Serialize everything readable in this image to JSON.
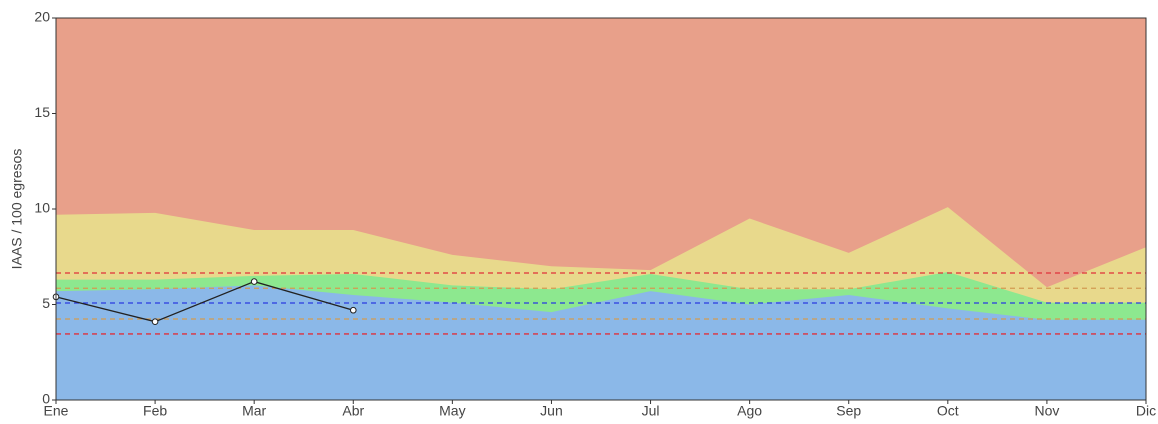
{
  "chart_data": {
    "type": "area",
    "ylabel": "IAAS / 100 egresos",
    "categories": [
      "Ene",
      "Feb",
      "Mar",
      "Abr",
      "May",
      "Jun",
      "Jul",
      "Ago",
      "Sep",
      "Oct",
      "Nov",
      "Dic"
    ],
    "ylim": [
      0,
      20
    ],
    "yticks": [
      0,
      5,
      10,
      15,
      20
    ],
    "series": [
      {
        "color": "#e8a08a",
        "values": [
          20,
          20,
          20,
          20,
          20,
          20,
          20,
          20,
          20,
          20,
          20,
          20
        ]
      },
      {
        "color": "#e8d98c",
        "values": [
          9.7,
          9.8,
          8.9,
          8.9,
          7.6,
          7.0,
          6.8,
          9.5,
          7.7,
          10.1,
          5.9,
          8.0
        ]
      },
      {
        "color": "#8de88f",
        "values": [
          6.3,
          6.3,
          6.5,
          6.6,
          6.0,
          5.8,
          6.6,
          5.8,
          5.8,
          6.7,
          5.1,
          5.1
        ]
      },
      {
        "color": "#8bb8e8",
        "values": [
          5.7,
          5.8,
          6.0,
          5.5,
          5.1,
          4.6,
          5.7,
          5.0,
          5.5,
          4.8,
          4.2,
          4.2
        ]
      }
    ],
    "line": {
      "color": "#222222",
      "values": [
        5.4,
        4.1,
        6.2,
        4.7,
        null,
        null,
        null,
        null,
        null,
        null,
        null,
        null
      ]
    },
    "hlines": [
      {
        "value": 6.65,
        "color": "#e0303a"
      },
      {
        "value": 5.85,
        "color": "#d49a50"
      },
      {
        "value": 5.08,
        "color": "#2a3ae0"
      },
      {
        "value": 4.24,
        "color": "#d49a50"
      },
      {
        "value": 3.46,
        "color": "#e0303a"
      }
    ]
  }
}
